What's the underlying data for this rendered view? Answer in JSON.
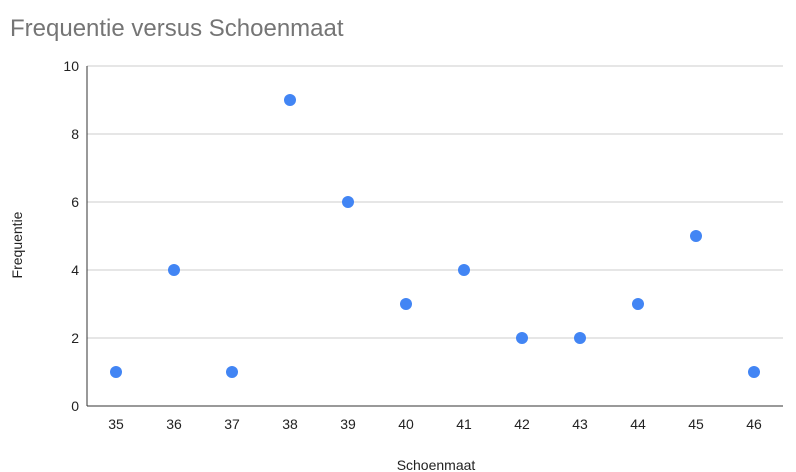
{
  "chart_data": {
    "type": "scatter",
    "title": "Frequentie versus Schoenmaat",
    "xlabel": "Schoenmaat",
    "ylabel": "Frequentie",
    "x": [
      35,
      36,
      37,
      38,
      39,
      40,
      41,
      42,
      43,
      44,
      45,
      46
    ],
    "series": [
      {
        "values": [
          1,
          4,
          1,
          9,
          6,
          3,
          4,
          2,
          2,
          3,
          5,
          1
        ]
      }
    ],
    "xticks": [
      "35",
      "36",
      "37",
      "38",
      "39",
      "40",
      "41",
      "42",
      "43",
      "44",
      "45",
      "46"
    ],
    "yticks": [
      "0",
      "2",
      "4",
      "6",
      "8",
      "10"
    ],
    "ylim": [
      0,
      10
    ],
    "xlim": [
      34.5,
      46.5
    ],
    "grid": true,
    "legend": "none",
    "colors": {
      "point": "#4285f4",
      "grid": "#cccccc",
      "axis": "#333333",
      "title": "#757575",
      "text": "#222222"
    }
  }
}
